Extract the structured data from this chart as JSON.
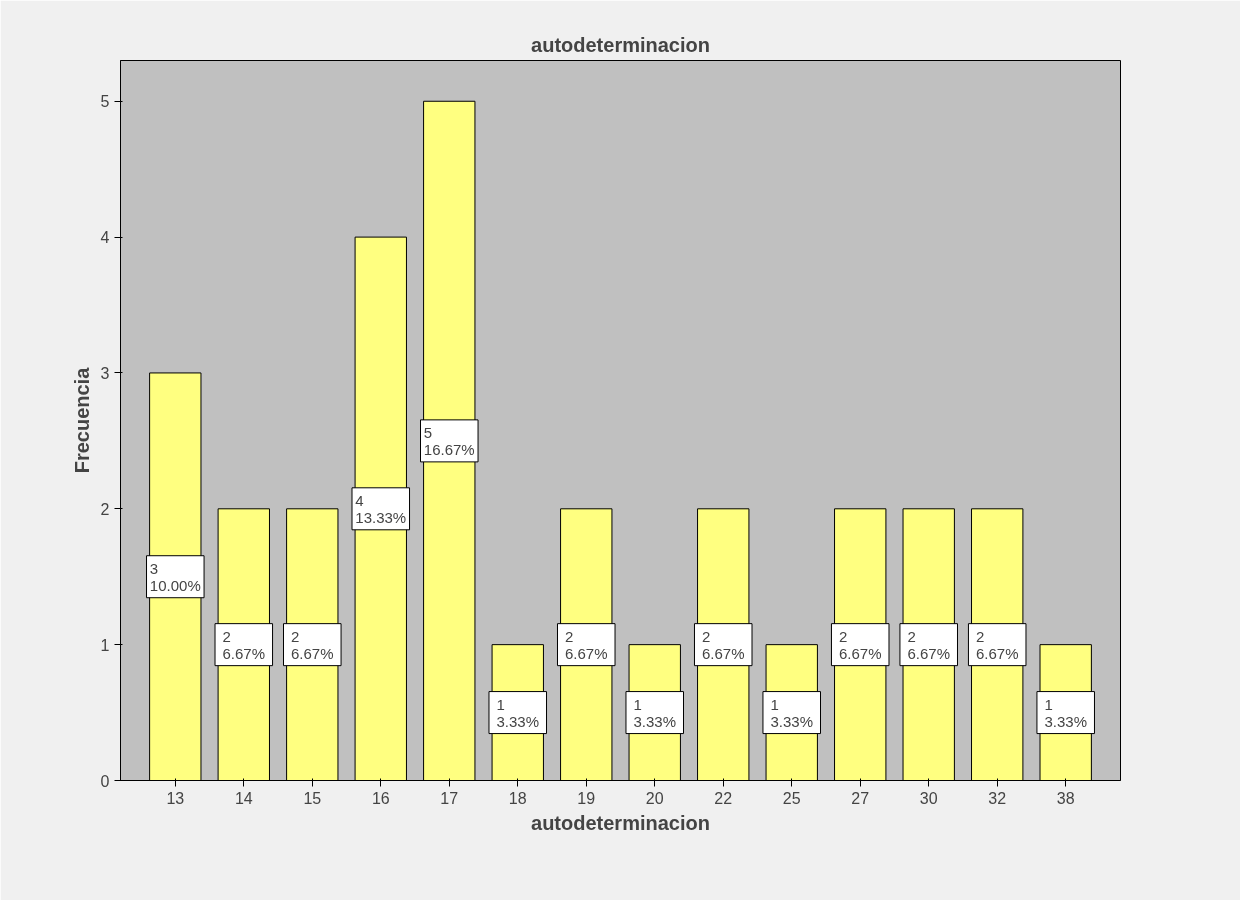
{
  "chart_data": {
    "type": "bar",
    "title": "autodeterminacion",
    "xlabel": "autodeterminacion",
    "ylabel": "Frecuencia",
    "categories": [
      "13",
      "14",
      "15",
      "16",
      "17",
      "18",
      "19",
      "20",
      "22",
      "25",
      "27",
      "30",
      "32",
      "38"
    ],
    "values": [
      3,
      2,
      2,
      4,
      5,
      1,
      2,
      1,
      2,
      1,
      2,
      2,
      2,
      1
    ],
    "value_labels": [
      "3\n10.00%",
      "2\n6.67%",
      "2\n6.67%",
      "4\n13.33%",
      "5\n16.67%",
      "1\n3.33%",
      "2\n6.67%",
      "1\n3.33%",
      "2\n6.67%",
      "1\n3.33%",
      "2\n6.67%",
      "2\n6.67%",
      "2\n6.67%",
      "1\n3.33%"
    ],
    "color": "#ffff80",
    "ylim": [
      0,
      5.3
    ],
    "yticks": [
      0,
      1,
      2,
      3,
      4,
      5
    ],
    "grid": false
  }
}
